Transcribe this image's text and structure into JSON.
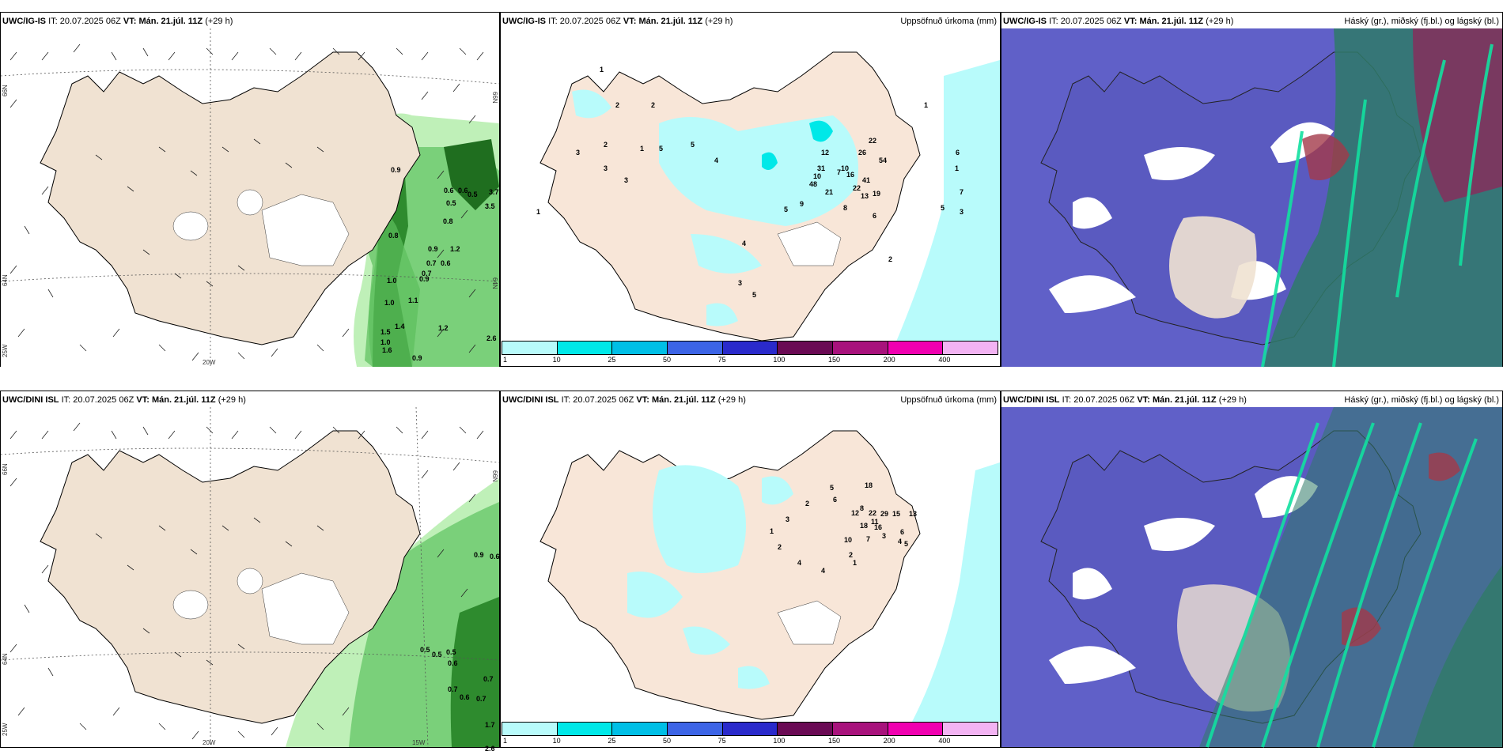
{
  "rows": [
    {
      "model": "UWC/IG-IS",
      "panels": {
        "wind": {
          "model": "UWC/IG-IS",
          "it": "20.07.2025 06Z",
          "vt": "Mán. 21.júl. 11Z",
          "lead": "(+29 h)"
        },
        "precip": {
          "model": "UWC/IG-IS",
          "it": "20.07.2025 06Z",
          "vt": "Mán. 21.júl. 11Z",
          "lead": "(+29 h)",
          "title": "Uppsöfnuð úrkoma (mm)"
        },
        "cloud": {
          "model": "UWC/IG-IS",
          "it": "20.07.2025 06Z",
          "vt": "Mán. 21.júl. 11Z",
          "lead": "(+29 h)",
          "title": "Háský (gr.), miðský (fj.bl.) og lágský (bl.)"
        }
      },
      "wind_labels": {
        "lat66": "66N",
        "lat64": "64N",
        "lon25": "25W",
        "lon20": "20W",
        "lat66r": "66N",
        "lat64r": "64N"
      },
      "wind_values": [
        "0.9",
        "0.6",
        "0.6",
        "0.5",
        "0.5",
        "0.8",
        "0.8",
        "0.9",
        "1.2",
        "0.7",
        "0.6",
        "0.7",
        "1.0",
        "0.9",
        "1.0",
        "1.1",
        "1.2",
        "1.5",
        "1.6",
        "0.9",
        "1.0",
        "1.4",
        "2.6",
        "3.7",
        "3.5"
      ],
      "precip_values": [
        "1",
        "2",
        "2",
        "1",
        "2",
        "1",
        "3",
        "3",
        "3",
        "5",
        "5",
        "4",
        "22",
        "26",
        "54",
        "31",
        "10",
        "16",
        "22",
        "41",
        "48",
        "21",
        "19",
        "12",
        "10",
        "7",
        "13",
        "9",
        "5",
        "8",
        "6",
        "3",
        "4",
        "5",
        "2",
        "1",
        "1",
        "6",
        "7",
        "5",
        "3"
      ]
    },
    {
      "model": "UWC/DINI ISL",
      "panels": {
        "wind": {
          "model": "UWC/DINI ISL",
          "it": "20.07.2025 06Z",
          "vt": "Mán. 21.júl. 11Z",
          "lead": "(+29 h)"
        },
        "precip": {
          "model": "UWC/DINI ISL",
          "it": "20.07.2025 06Z",
          "vt": "Mán. 21.júl. 11Z",
          "lead": "(+29 h)",
          "title": "Uppsöfnuð úrkoma (mm)"
        },
        "cloud": {
          "model": "UWC/DINI ISL",
          "it": "20.07.2025 06Z",
          "vt": "Mán. 21.júl. 11Z",
          "lead": "(+29 h)",
          "title": "Háský (gr.), miðský (fj.bl.) og lágský (bl.)"
        }
      },
      "wind_labels": {
        "lat66": "66N",
        "lat64": "64N",
        "lon25": "25W",
        "lon20": "20W",
        "lon15": "15W",
        "lat66r": "66N"
      },
      "wind_values": [
        "0.9",
        "0.6",
        "0.5",
        "0.5",
        "0.5",
        "0.6",
        "0.7",
        "0.7",
        "0.6",
        "0.7",
        "1.7",
        "2.6"
      ],
      "precip_values": [
        "18",
        "8",
        "12",
        "22",
        "29",
        "15",
        "13",
        "11",
        "18",
        "16",
        "10",
        "7",
        "6",
        "5",
        "4",
        "3",
        "2",
        "1",
        "5",
        "6",
        "2",
        "3",
        "1",
        "2",
        "4",
        "4"
      ]
    }
  ],
  "colorbar": {
    "ticks": [
      "1",
      "10",
      "25",
      "50",
      "75",
      "100",
      "150",
      "200",
      "400"
    ],
    "colors": [
      "#b8fbfb",
      "#00e8e8",
      "#00bfe6",
      "#3c64e6",
      "#2a2acb",
      "#6a0a54",
      "#a8127c",
      "#f000b0",
      "#f3b3f3"
    ]
  }
}
